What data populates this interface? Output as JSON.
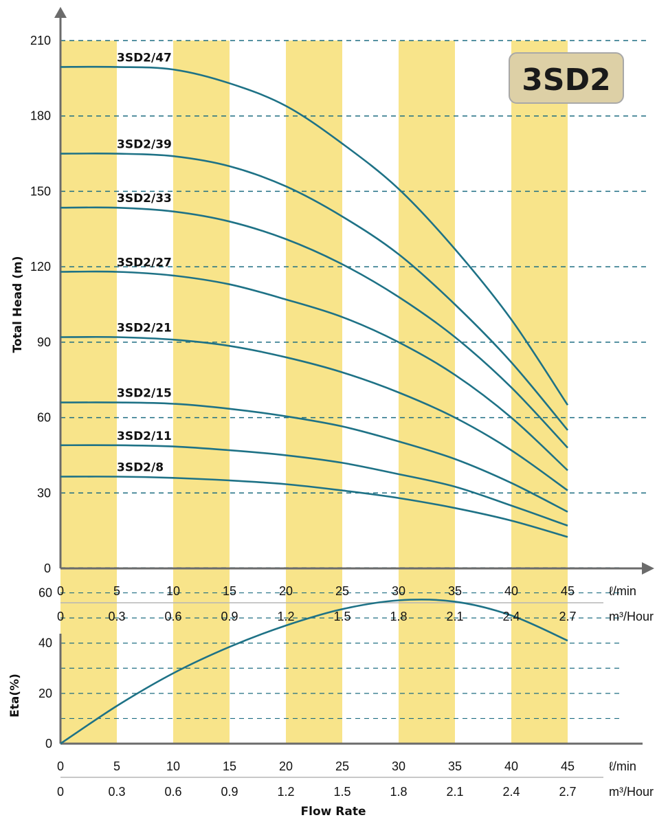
{
  "badge": "3SD2",
  "colors": {
    "band": "#f8e48a",
    "curve": "#1e7286",
    "grid": "#1e6d82",
    "axis": "#6b6b6b",
    "badge_bg": "#ddd0a6",
    "badge_border": "#a8a8a8"
  },
  "chart_data": [
    {
      "type": "line",
      "ylabel": "Total Head (m)",
      "ylim": [
        0,
        210
      ],
      "yticks": [
        "0",
        "30",
        "60",
        "90",
        "120",
        "150",
        "180",
        "210"
      ],
      "xlim": [
        0,
        45
      ],
      "x_ticks_lmin": [
        "0",
        "5",
        "10",
        "15",
        "20",
        "25",
        "30",
        "35",
        "40",
        "45"
      ],
      "x_ticks_m3h": [
        "0",
        "0.3",
        "0.6",
        "0.9",
        "1.2",
        "1.5",
        "1.8",
        "2.1",
        "2.4",
        "2.7"
      ],
      "x_unit_lmin": "ℓ/min",
      "x_unit_m3h": "m³/Hour",
      "grid": "horizontal dashed",
      "x": [
        0,
        5,
        10,
        15,
        20,
        25,
        30,
        35,
        40,
        45
      ],
      "series": [
        {
          "name": "3SD2/47",
          "values": [
            199.5,
            199.5,
            198.5,
            193,
            184,
            169,
            151,
            127,
            99,
            65
          ]
        },
        {
          "name": "3SD2/39",
          "values": [
            165,
            165,
            164,
            160,
            152,
            140,
            125,
            105,
            82,
            55
          ]
        },
        {
          "name": "3SD2/33",
          "values": [
            143.5,
            143.5,
            142,
            138,
            131,
            121,
            108,
            92,
            72,
            48
          ]
        },
        {
          "name": "3SD2/27",
          "values": [
            118,
            118,
            116.5,
            113,
            107,
            100,
            90,
            77,
            60,
            39
          ]
        },
        {
          "name": "3SD2/21",
          "values": [
            92,
            92,
            91,
            88.5,
            84,
            78,
            70,
            60,
            47,
            31
          ]
        },
        {
          "name": "3SD2/15",
          "values": [
            66,
            66,
            65.5,
            63.5,
            60.5,
            56.5,
            50.5,
            43.5,
            34,
            22.5
          ]
        },
        {
          "name": "3SD2/11",
          "values": [
            49,
            49,
            48.5,
            47,
            45,
            42,
            37.5,
            32.5,
            25,
            17
          ]
        },
        {
          "name": "3SD2/8",
          "values": [
            36.5,
            36.5,
            36,
            35,
            33.5,
            31,
            28,
            24,
            19,
            12.5
          ]
        }
      ]
    },
    {
      "type": "line",
      "ylabel": "Eta(%)",
      "ylim": [
        0,
        70
      ],
      "yticks": [
        "0",
        "20",
        "40",
        "60"
      ],
      "xlim": [
        0,
        45
      ],
      "x_ticks_lmin": [
        "0",
        "5",
        "10",
        "15",
        "20",
        "25",
        "30",
        "35",
        "40",
        "45"
      ],
      "x_ticks_m3h": [
        "0",
        "0.3",
        "0.6",
        "0.9",
        "1.2",
        "1.5",
        "1.8",
        "2.1",
        "2.4",
        "2.7"
      ],
      "x_unit_lmin": "ℓ/min",
      "x_unit_m3h": "m³/Hour",
      "xlabel": "Flow Rate",
      "grid": "horizontal dashed",
      "x": [
        0,
        5,
        10,
        15,
        20,
        25,
        30,
        35,
        40,
        45
      ],
      "series": [
        {
          "values": [
            0,
            15,
            28,
            38.5,
            47,
            53.5,
            57,
            56.5,
            51,
            41
          ]
        }
      ]
    }
  ]
}
